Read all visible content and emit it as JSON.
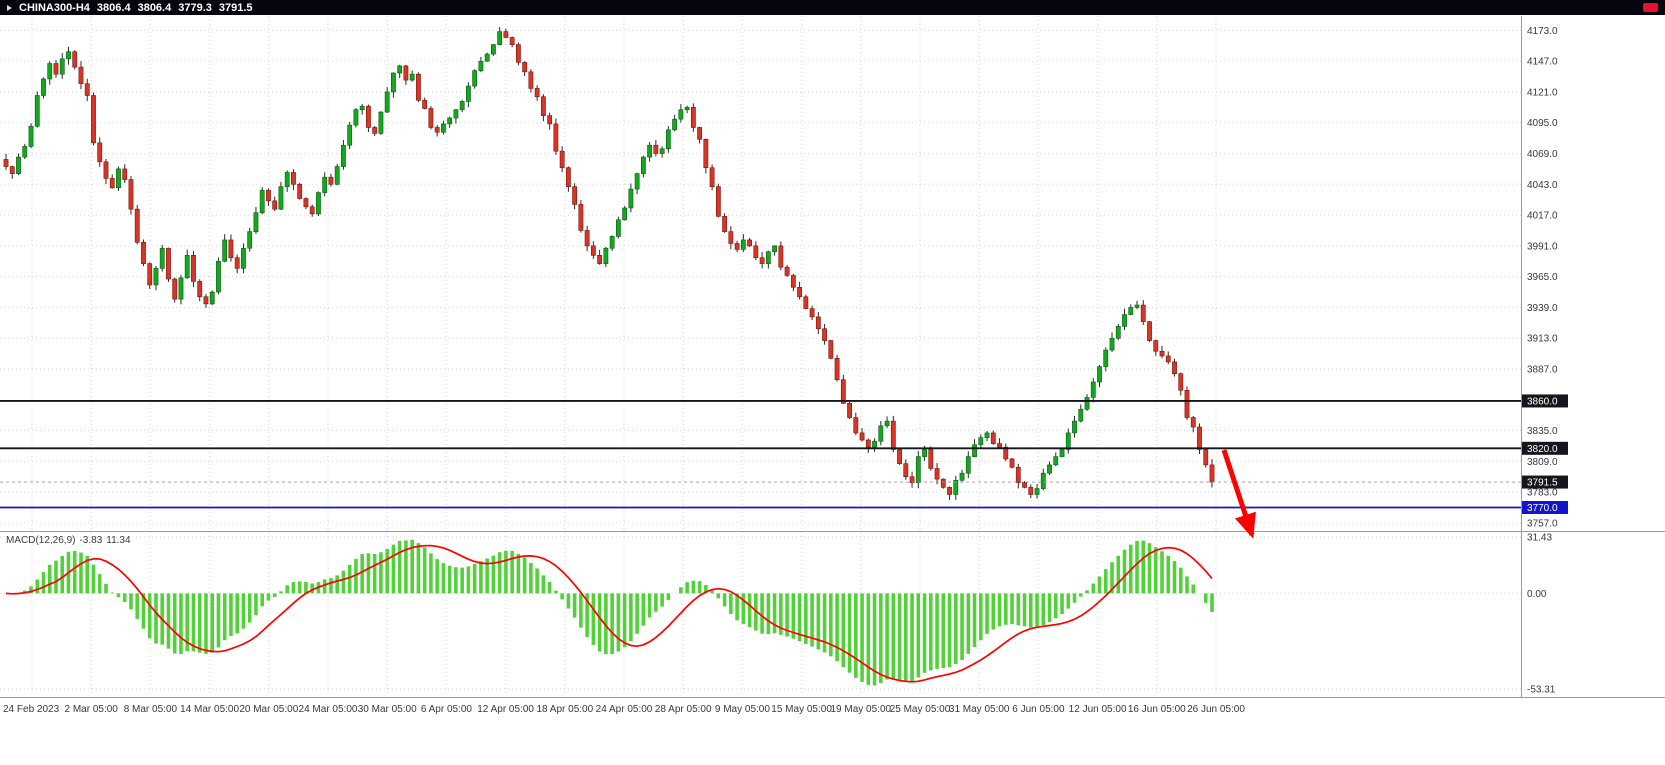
{
  "header": {
    "symbol": "CHINA300-H4",
    "open": "3806.4",
    "high": "3806.4",
    "low": "3779.3",
    "close": "3791.5"
  },
  "macd_label": {
    "name": "MACD(12,26,9)",
    "value": "-3.83",
    "signal": "11.34"
  },
  "colors": {
    "background": "#ffffff",
    "header_bg": "#05050f",
    "grid": "#d6d6de",
    "separator": "#9a9aa2",
    "axis_text": "#38383c",
    "bull": "#13a81e",
    "bull_border": "#0a5c14",
    "bear": "#d93526",
    "bear_border": "#7c150c",
    "wick": "#2a2a2a",
    "hist": "#52d13a",
    "signal": "#ff0000",
    "level_black": "#15151c",
    "level_blue": "#1414cc",
    "arrow": "#ff0000"
  },
  "chart_data": {
    "type": "candlestick",
    "symbol": "CHINA300",
    "timeframe": "H4",
    "title": "CHINA300-H4",
    "quote": {
      "open": 3806.4,
      "high": 3806.4,
      "low": 3779.3,
      "close": 3791.5
    },
    "current_price": {
      "label": "3791.5",
      "value": 3791.5,
      "badge_bg": "#15151c"
    },
    "price_axis": {
      "labels": [
        "4173.0",
        "4147.0",
        "4121.0",
        "4095.0",
        "4069.0",
        "4043.0",
        "4017.0",
        "3991.0",
        "3965.0",
        "3939.0",
        "3913.0",
        "3887.0",
        "3835.0",
        "3809.0",
        "3783.0",
        "3757.0"
      ],
      "min": 3751,
      "max": 4186
    },
    "time_labels": [
      "24 Feb 2023",
      "2 Mar 05:00",
      "8 Mar 05:00",
      "14 Mar 05:00",
      "20 Mar 05:00",
      "24 Mar 05:00",
      "30 Mar 05:00",
      "6 Apr 05:00",
      "12 Apr 05:00",
      "18 Apr 05:00",
      "24 Apr 05:00",
      "28 Apr 05:00",
      "9 May 05:00",
      "15 May 05:00",
      "19 May 05:00",
      "25 May 05:00",
      "31 May 05:00",
      "6 Jun 05:00",
      "12 Jun 05:00",
      "16 Jun 05:00",
      "26 Jun 05:00"
    ],
    "closes": [
      4058,
      4052,
      4066,
      4075,
      4092,
      4118,
      4132,
      4145,
      4136,
      4149,
      4155,
      4142,
      4128,
      4118,
      4078,
      4062,
      4048,
      4040,
      4056,
      4047,
      4022,
      3994,
      3976,
      3958,
      3972,
      3989,
      3963,
      3946,
      3964,
      3983,
      3961,
      3948,
      3942,
      3952,
      3978,
      3996,
      3981,
      3972,
      3989,
      4003,
      4019,
      4038,
      4029,
      4022,
      4041,
      4053,
      4043,
      4031,
      4024,
      4018,
      4036,
      4049,
      4043,
      4058,
      4076,
      4093,
      4106,
      4109,
      4091,
      4086,
      4104,
      4121,
      4137,
      4143,
      4131,
      4136,
      4114,
      4107,
      4091,
      4087,
      4094,
      4099,
      4106,
      4113,
      4126,
      4139,
      4147,
      4153,
      4161,
      4172,
      4167,
      4161,
      4146,
      4138,
      4124,
      4117,
      4101,
      4094,
      4071,
      4057,
      4041,
      4026,
      4004,
      3991,
      3983,
      3976,
      3989,
      3999,
      4013,
      4023,
      4039,
      4052,
      4066,
      4076,
      4069,
      4073,
      4089,
      4098,
      4106,
      4108,
      4091,
      4081,
      4057,
      4041,
      4016,
      4003,
      3993,
      3988,
      3996,
      3991,
      3981,
      3976,
      3986,
      3991,
      3973,
      3966,
      3956,
      3948,
      3938,
      3931,
      3921,
      3911,
      3896,
      3878,
      3858,
      3846,
      3833,
      3827,
      3821,
      3826,
      3839,
      3843,
      3819,
      3807,
      3796,
      3791,
      3813,
      3819,
      3803,
      3794,
      3787,
      3781,
      3793,
      3799,
      3813,
      3823,
      3829,
      3833,
      3824,
      3821,
      3811,
      3804,
      3791,
      3787,
      3781,
      3786,
      3799,
      3806,
      3813,
      3819,
      3833,
      3843,
      3853,
      3863,
      3876,
      3889,
      3903,
      3913,
      3923,
      3933,
      3939,
      3941,
      3927,
      3911,
      3902,
      3898,
      3893,
      3883,
      3869,
      3846,
      3838,
      3819,
      3806,
      3791.5
    ],
    "levels": [
      {
        "label": "3860.0",
        "value": 3860.0,
        "color": "#15151c",
        "badge_bg": "#15151c"
      },
      {
        "label": "3820.0",
        "value": 3820.0,
        "color": "#15151c",
        "badge_bg": "#15151c"
      },
      {
        "label": "3770.0",
        "value": 3770.0,
        "color": "#1414cc",
        "badge_bg": "#1414cc"
      }
    ],
    "macd": {
      "label": "MACD(12,26,9)",
      "fast": 12,
      "slow": 26,
      "signal_period": 9,
      "value": -3.83,
      "signal_value": 11.34,
      "axis_labels": [
        "31.43",
        "0.00",
        "-53.31"
      ],
      "range": [
        -53.31,
        31.43
      ]
    },
    "annotation": {
      "type": "arrow",
      "direction": "down-right",
      "color": "#ff0000",
      "note": "bearish breakdown arrow below 3820 level"
    }
  }
}
